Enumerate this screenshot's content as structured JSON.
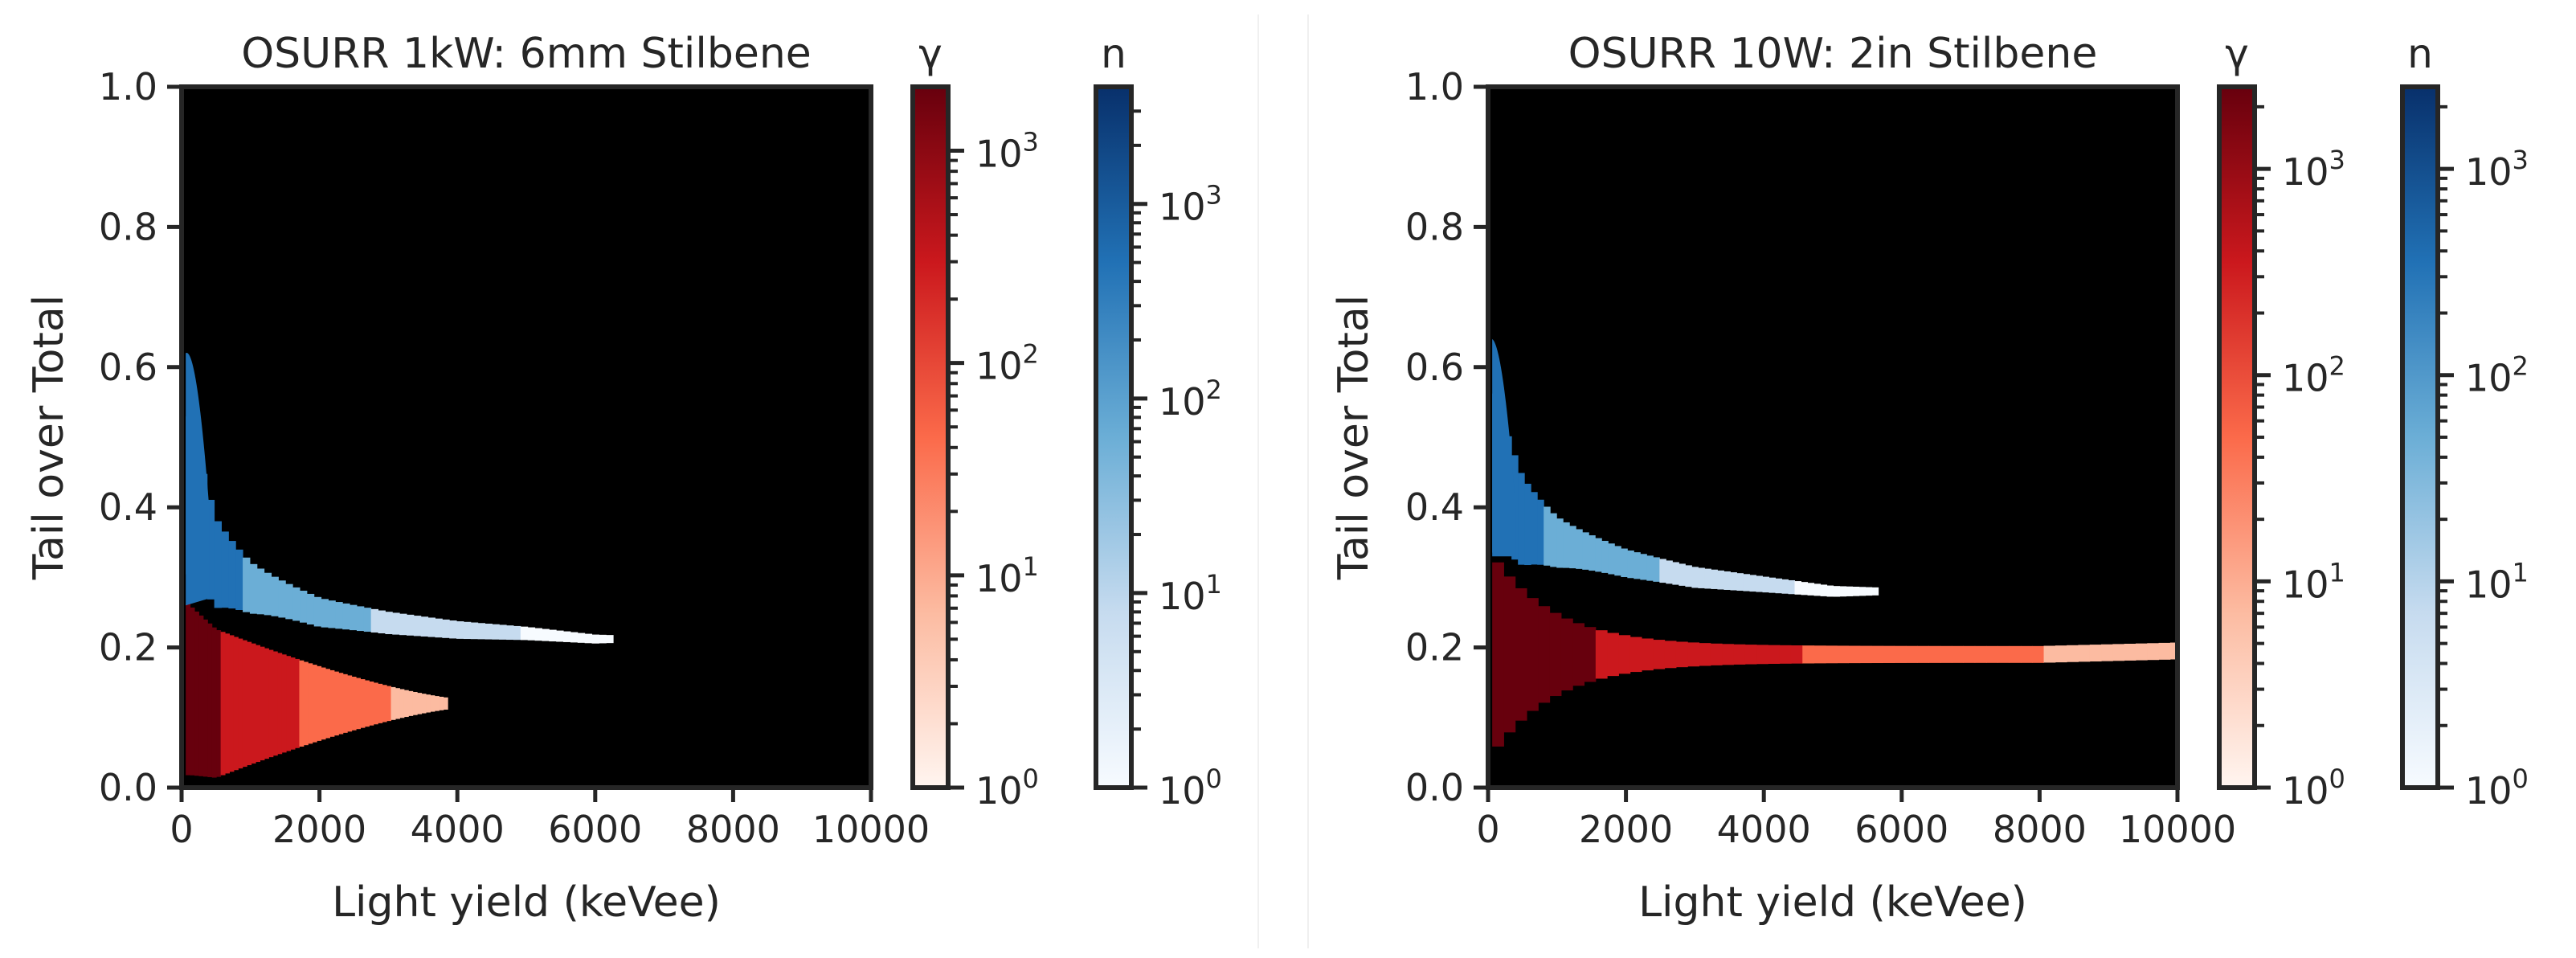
{
  "chart_data": [
    {
      "type": "heatmap",
      "title": "OSURR 1kW: 6mm Stilbene",
      "xlabel": "Light yield (keVee)",
      "ylabel": "Tail over Total",
      "xlim": [
        0,
        10000
      ],
      "ylim": [
        0,
        1.0
      ],
      "xticks": [
        0,
        2000,
        4000,
        6000,
        8000,
        10000
      ],
      "xtick_labels": [
        "0",
        "2000",
        "4000",
        "6000",
        "8000",
        "10000"
      ],
      "yticks": [
        0.0,
        0.2,
        0.4,
        0.6,
        0.8,
        1.0
      ],
      "ytick_labels": [
        "0.0",
        "0.2",
        "0.4",
        "0.6",
        "0.8",
        "1.0"
      ],
      "background": "#000000",
      "colorbars": [
        {
          "label": "γ",
          "cmap": "Reds",
          "scale": "log",
          "min": 1,
          "max": 2000,
          "ticks": [
            1,
            10,
            100,
            1000
          ],
          "tick_bases": [
            "10",
            "10",
            "10",
            "10"
          ],
          "tick_exponents": [
            "0",
            "1",
            "2",
            "3"
          ]
        },
        {
          "label": "n",
          "cmap": "Blues",
          "scale": "log",
          "min": 1,
          "max": 4000,
          "ticks": [
            1,
            10,
            100,
            1000
          ],
          "tick_bases": [
            "10",
            "10",
            "10",
            "10"
          ],
          "tick_exponents": [
            "0",
            "1",
            "2",
            "3"
          ]
        }
      ],
      "series": [
        {
          "name": "γ",
          "band_center": [
            [
              100,
              0.14
            ],
            [
              500,
              0.12
            ],
            [
              1000,
              0.12
            ],
            [
              2000,
              0.12
            ],
            [
              3000,
              0.12
            ],
            [
              3500,
              0.12
            ]
          ],
          "band_halfwidth_start": 0.12,
          "max_light_yield": 3800
        },
        {
          "name": "n",
          "band_center": [
            [
              100,
              0.42
            ],
            [
              500,
              0.32
            ],
            [
              1000,
              0.285
            ],
            [
              2000,
              0.25
            ],
            [
              3000,
              0.235
            ],
            [
              4000,
              0.225
            ],
            [
              5000,
              0.22
            ],
            [
              6000,
              0.212
            ]
          ],
          "max_light_yield": 6200
        }
      ]
    },
    {
      "type": "heatmap",
      "title": "OSURR 10W: 2in Stilbene",
      "xlabel": "Light yield (keVee)",
      "ylabel": "Tail over Total",
      "xlim": [
        0,
        10000
      ],
      "ylim": [
        0,
        1.0
      ],
      "xticks": [
        0,
        2000,
        4000,
        6000,
        8000,
        10000
      ],
      "xtick_labels": [
        "0",
        "2000",
        "4000",
        "6000",
        "8000",
        "10000"
      ],
      "yticks": [
        0.0,
        0.2,
        0.4,
        0.6,
        0.8,
        1.0
      ],
      "ytick_labels": [
        "0.0",
        "0.2",
        "0.4",
        "0.6",
        "0.8",
        "1.0"
      ],
      "background": "#000000",
      "colorbars": [
        {
          "label": "γ",
          "cmap": "Reds",
          "scale": "log",
          "min": 1,
          "max": 2500,
          "ticks": [
            1,
            10,
            100,
            1000
          ],
          "tick_bases": [
            "10",
            "10",
            "10",
            "10"
          ],
          "tick_exponents": [
            "0",
            "1",
            "2",
            "3"
          ]
        },
        {
          "label": "n",
          "cmap": "Blues",
          "scale": "log",
          "min": 1,
          "max": 2500,
          "ticks": [
            1,
            10,
            100,
            1000
          ],
          "tick_bases": [
            "10",
            "10",
            "10",
            "10"
          ],
          "tick_exponents": [
            "0",
            "1",
            "2",
            "3"
          ]
        }
      ],
      "series": [
        {
          "name": "γ",
          "band_center": [
            [
              100,
              0.19
            ],
            [
              1000,
              0.19
            ],
            [
              2000,
              0.19
            ],
            [
              4000,
              0.19
            ],
            [
              6000,
              0.19
            ],
            [
              8000,
              0.19
            ],
            [
              10000,
              0.195
            ]
          ],
          "band_halfwidth_start": 0.14,
          "max_light_yield": 10000
        },
        {
          "name": "n",
          "band_center": [
            [
              100,
              0.45
            ],
            [
              500,
              0.38
            ],
            [
              1000,
              0.35
            ],
            [
              2000,
              0.32
            ],
            [
              3000,
              0.3
            ],
            [
              4000,
              0.29
            ],
            [
              5000,
              0.28
            ]
          ],
          "max_light_yield": 5600
        }
      ]
    }
  ]
}
